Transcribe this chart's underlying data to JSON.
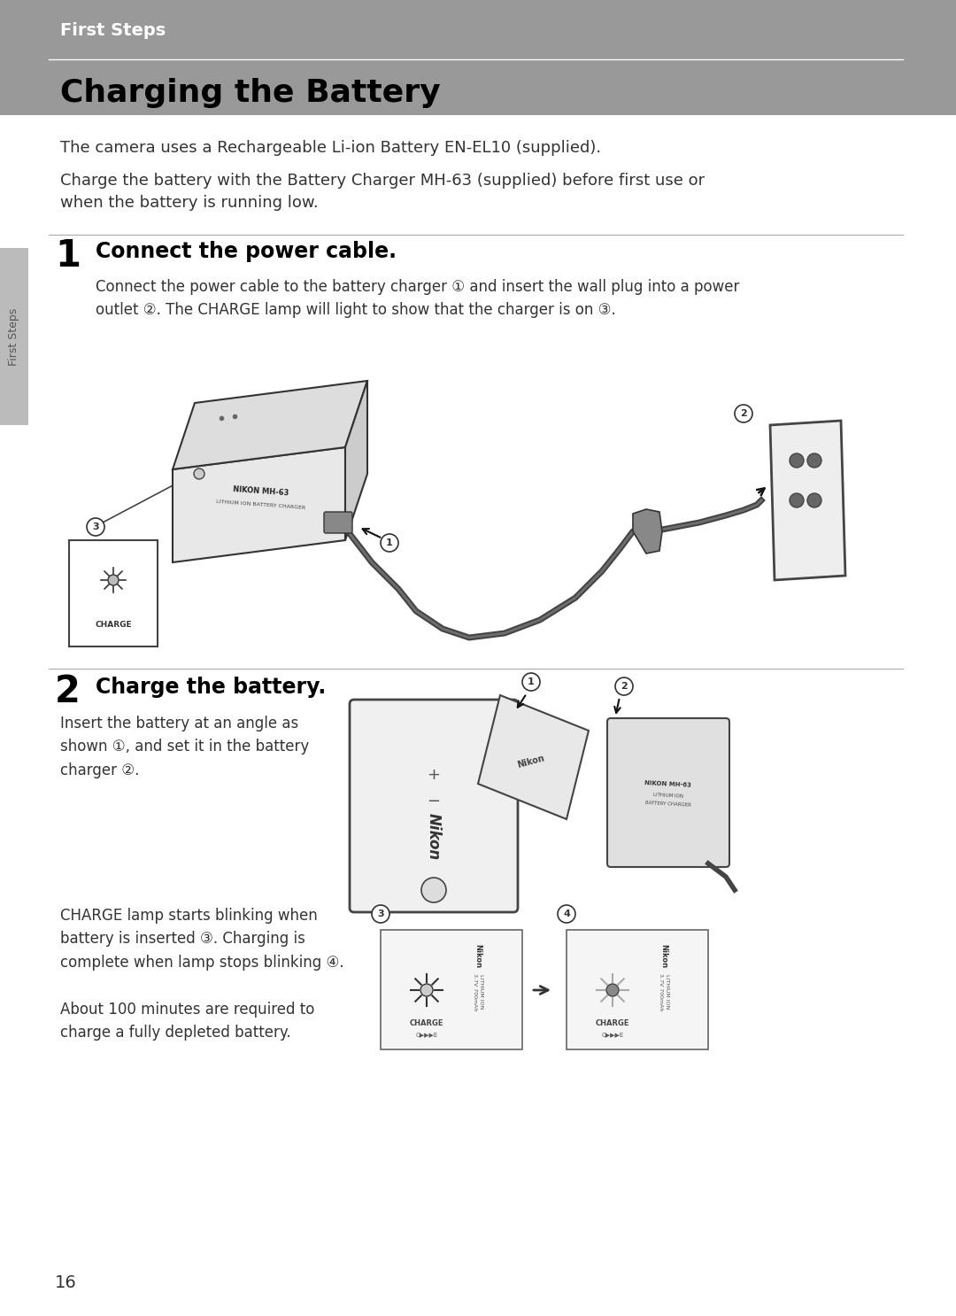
{
  "page_bg": "#ffffff",
  "header_bg": "#999999",
  "header_text": "First Steps",
  "header_text_color": "#ffffff",
  "title": "Charging the Battery",
  "title_color": "#000000",
  "intro_line1": "The camera uses a Rechargeable Li-ion Battery EN-EL10 (supplied).",
  "intro_line2": "Charge the battery with the Battery Charger MH-63 (supplied) before first use or\nwhen the battery is running low.",
  "step1_number": "1",
  "step1_header": "Connect the power cable.",
  "step1_body": "Connect the power cable to the battery charger ① and insert the wall plug into a power\noutlet ②. The CHARGE lamp will light to show that the charger is on ③.",
  "step2_number": "2",
  "step2_header": "Charge the battery.",
  "step2_body1": "Insert the battery at an angle as\nshown ①, and set it in the battery\ncharger ②.",
  "step2_body2": "CHARGE lamp starts blinking when\nbattery is inserted ③. Charging is\ncomplete when lamp stops blinking ④.\n\nAbout 100 minutes are required to\ncharge a fully depleted battery.",
  "sidebar_text": "First Steps",
  "page_number": "16",
  "divider_color": "#aaaaaa",
  "text_color": "#333333",
  "dark_text": "#111111"
}
